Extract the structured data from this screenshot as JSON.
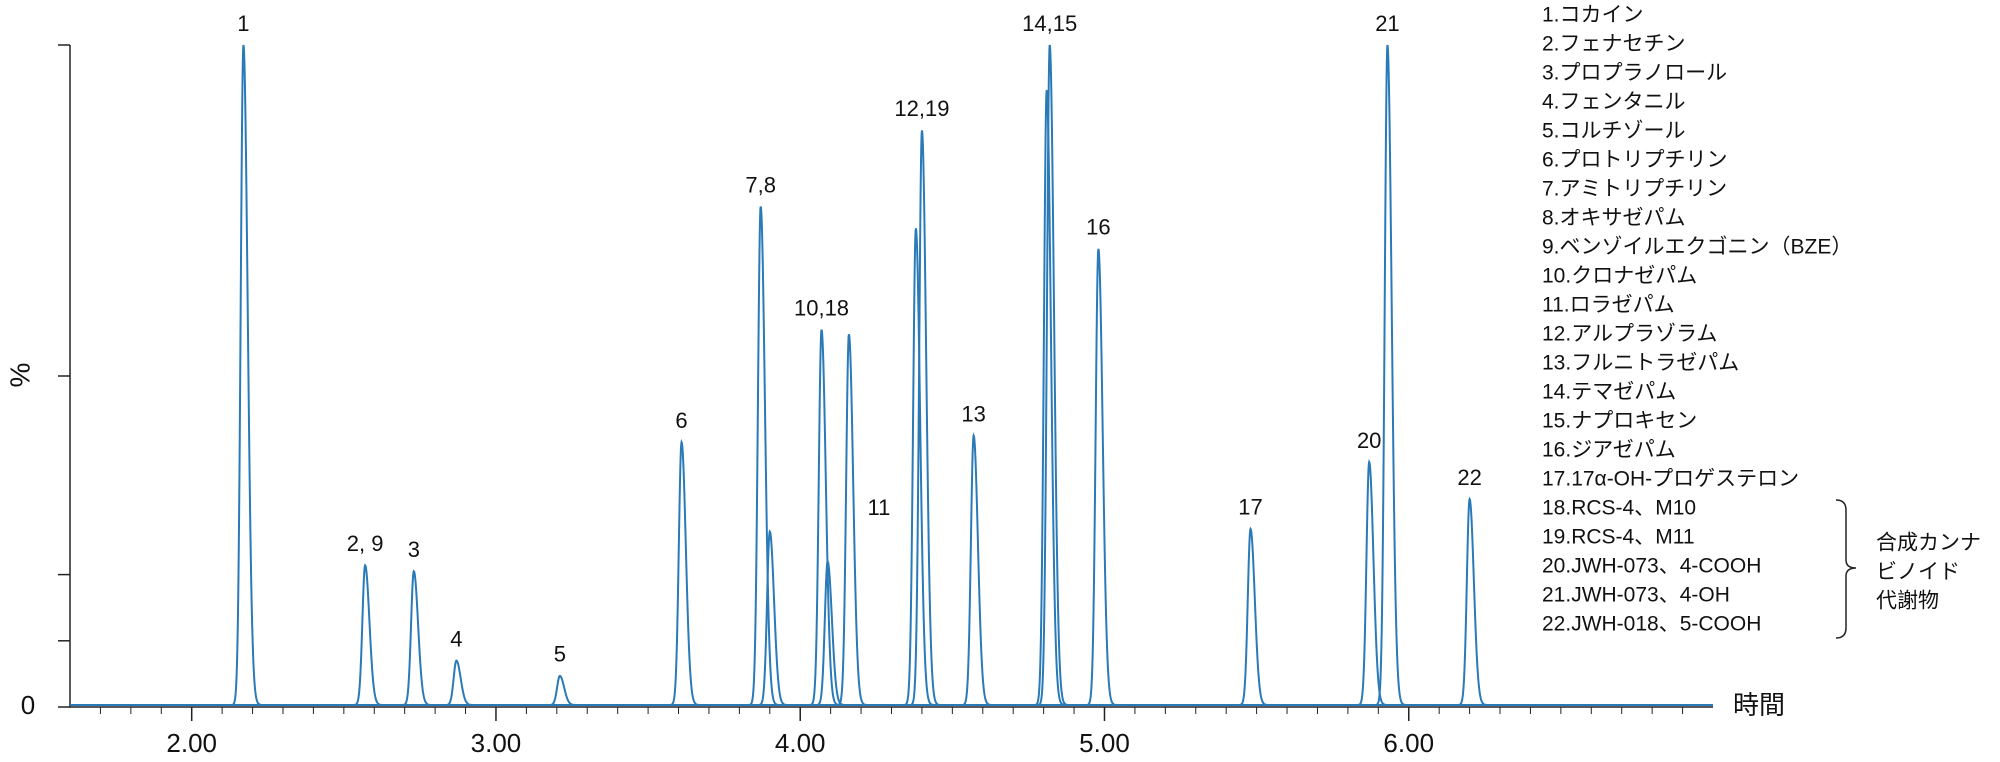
{
  "chart_data": {
    "type": "chromatogram",
    "xlabel": "時間",
    "ylabel": "%",
    "color": "#2a7ab8",
    "xlim": [
      1.6,
      7.0
    ],
    "ylim": [
      0,
      100
    ],
    "xticks": [
      {
        "value": 2,
        "label": "2.00"
      },
      {
        "value": 3,
        "label": "3.00"
      },
      {
        "value": 4,
        "label": "4.00"
      },
      {
        "value": 5,
        "label": "5.00"
      },
      {
        "value": 6,
        "label": "6.00"
      }
    ],
    "xminorticks": [
      1.7,
      1.8,
      1.9,
      2.1,
      2.2,
      2.3,
      2.4,
      2.5,
      2.6,
      2.7,
      2.8,
      2.9,
      3.1,
      3.2,
      3.3,
      3.4,
      3.5,
      3.6,
      3.7,
      3.8,
      3.9,
      4.1,
      4.2,
      4.3,
      4.4,
      4.5,
      4.6,
      4.7,
      4.8,
      4.9,
      5.1,
      5.2,
      5.3,
      5.4,
      5.5,
      5.6,
      5.7,
      5.8,
      5.9,
      6.1,
      6.2,
      6.3,
      6.4,
      6.5,
      6.6,
      6.7,
      6.8,
      6.9
    ],
    "yticks": [
      0
    ],
    "yminorticks": [
      10,
      20,
      50,
      100
    ],
    "peaks": {
      "x": [
        2.17,
        2.57,
        2.73,
        2.87,
        3.21,
        3.61,
        3.87,
        3.9,
        4.07,
        4.09,
        4.16,
        4.38,
        4.4,
        4.57,
        4.81,
        4.82,
        4.98,
        5.48,
        5.87,
        5.93,
        6.2
      ],
      "values": [
        100,
        21.4,
        20.5,
        7,
        4.7,
        40,
        75.6,
        26.5,
        57,
        22,
        56.3,
        72.3,
        87.1,
        41,
        93.2,
        100,
        69.2,
        26.9,
        37,
        100,
        31.4
      ],
      "labels": [
        "1",
        "2, 9",
        "3",
        "4",
        "5",
        "6",
        "7,8",
        null,
        "10,18",
        null,
        "11",
        null,
        "12,19",
        "13",
        null,
        "14,15",
        "16",
        "17",
        "20",
        "21",
        "22"
      ]
    },
    "compounds": [
      "1.コカイン",
      "2.フェナセチン",
      "3.プロプラノロール",
      "4.フェンタニル",
      "5.コルチゾール",
      "6.プロトリプチリン",
      "7.アミトリプチリン",
      "8.オキサゼパム",
      "9.ベンゾイルエクゴニン（BZE）",
      "10.クロナゼパム",
      "11.ロラゼパム",
      "12.アルプラゾラム",
      "13.フルニトラゼパム",
      "14.テマゼパム",
      "15.ナプロキセン",
      "16.ジアゼパム",
      "17.17α-OH-プロゲステロン",
      "18.RCS-4、M10",
      "19.RCS-4、M11",
      "20.JWH-073、4-COOH",
      "21.JWH-073、4-OH",
      "22.JWH-018、5-COOH"
    ],
    "group_label": [
      "合成カンナ",
      "ビノイド",
      "代謝物"
    ]
  }
}
